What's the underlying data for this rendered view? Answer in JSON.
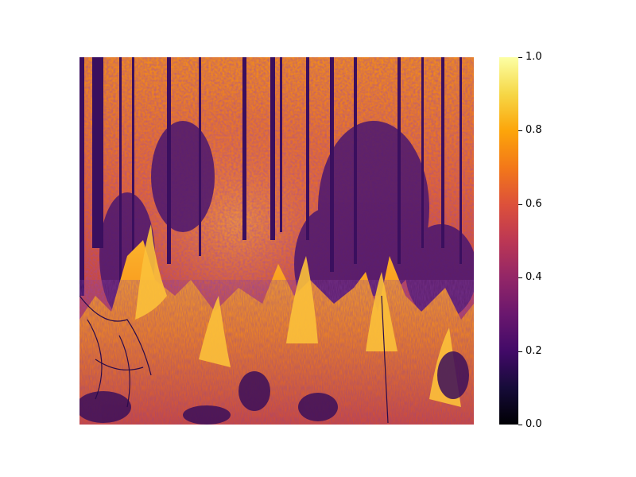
{
  "colorbar": {
    "colormap": "inferno",
    "ticks": [
      "0.0",
      "0.2",
      "0.4",
      "0.6",
      "0.8",
      "1.0"
    ],
    "range": [
      0.0,
      1.0
    ]
  },
  "image": {
    "description_icon": "heatmap-image"
  }
}
